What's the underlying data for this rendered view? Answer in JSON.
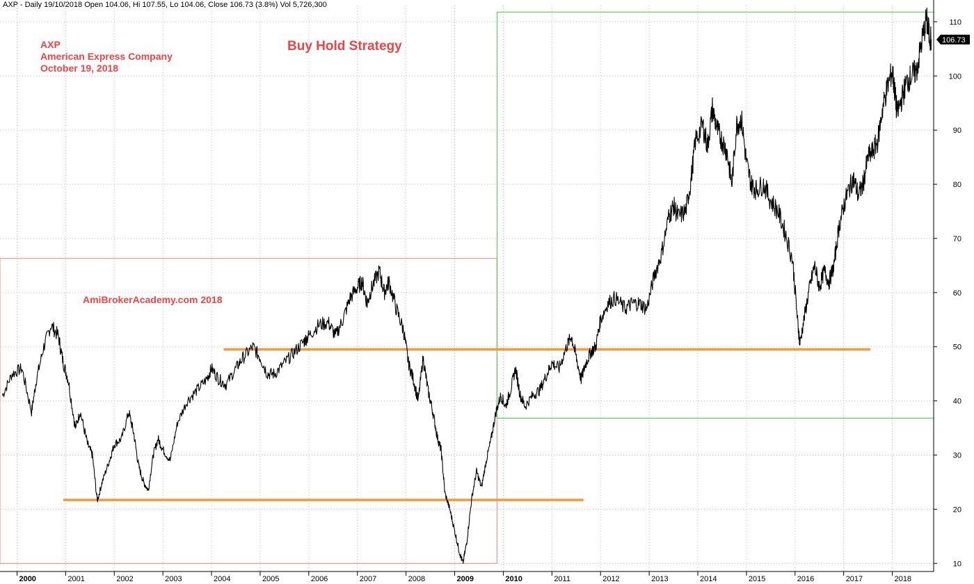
{
  "header": {
    "info": "AXP - Daily 19/10/2018 Open 104.06, Hi 107.55, Lo 104.06, Close 106.73 (3.8%) Vol 5,726,300"
  },
  "annotations": {
    "symbol": "AXP",
    "company": "American Express Company",
    "date": "October 19, 2018",
    "title": "Buy Hold Strategy",
    "watermark": "AmiBrokerAcademy.com  2018"
  },
  "colors": {
    "price": "#000000",
    "grid": "#bdbdbd",
    "red_box": "#f08080",
    "green_box": "#33dd33",
    "orange_line": "#f59a3a",
    "annotation": "#ef4444",
    "last_price_tag": "#000000"
  },
  "chart_data": {
    "type": "line",
    "series": [
      {
        "values": [
          [
            1999.7,
            41
          ],
          [
            1999.9,
            45
          ],
          [
            2000.1,
            46
          ],
          [
            2000.3,
            38
          ],
          [
            2000.4,
            44
          ],
          [
            2000.55,
            50
          ],
          [
            2000.7,
            54
          ],
          [
            2000.85,
            52
          ],
          [
            2000.95,
            47
          ],
          [
            2001.05,
            44
          ],
          [
            2001.2,
            35
          ],
          [
            2001.3,
            38
          ],
          [
            2001.45,
            32
          ],
          [
            2001.55,
            30
          ],
          [
            2001.65,
            21.5
          ],
          [
            2001.75,
            25
          ],
          [
            2001.9,
            29
          ],
          [
            2002.0,
            32
          ],
          [
            2002.15,
            33
          ],
          [
            2002.3,
            38
          ],
          [
            2002.4,
            34
          ],
          [
            2002.5,
            28
          ],
          [
            2002.6,
            25
          ],
          [
            2002.7,
            23.5
          ],
          [
            2002.8,
            30
          ],
          [
            2002.9,
            33
          ],
          [
            2003.0,
            31
          ],
          [
            2003.15,
            29
          ],
          [
            2003.3,
            36
          ],
          [
            2003.5,
            40
          ],
          [
            2003.7,
            42
          ],
          [
            2003.9,
            44
          ],
          [
            2004.0,
            46
          ],
          [
            2004.15,
            44
          ],
          [
            2004.3,
            43
          ],
          [
            2004.5,
            46
          ],
          [
            2004.65,
            48
          ],
          [
            2004.85,
            50
          ],
          [
            2005.0,
            48
          ],
          [
            2005.15,
            45
          ],
          [
            2005.3,
            45
          ],
          [
            2005.5,
            47
          ],
          [
            2005.7,
            49
          ],
          [
            2005.9,
            51
          ],
          [
            2006.0,
            52
          ],
          [
            2006.2,
            54
          ],
          [
            2006.4,
            54.5
          ],
          [
            2006.55,
            52
          ],
          [
            2006.7,
            55
          ],
          [
            2006.85,
            59
          ],
          [
            2007.0,
            61
          ],
          [
            2007.1,
            62
          ],
          [
            2007.2,
            58
          ],
          [
            2007.3,
            61
          ],
          [
            2007.45,
            64
          ],
          [
            2007.55,
            60
          ],
          [
            2007.65,
            62
          ],
          [
            2007.8,
            57
          ],
          [
            2007.95,
            53
          ],
          [
            2008.05,
            47
          ],
          [
            2008.15,
            44
          ],
          [
            2008.25,
            40
          ],
          [
            2008.35,
            48
          ],
          [
            2008.45,
            42
          ],
          [
            2008.55,
            38
          ],
          [
            2008.65,
            33
          ],
          [
            2008.72,
            31
          ],
          [
            2008.8,
            23
          ],
          [
            2008.9,
            20
          ],
          [
            2009.0,
            16
          ],
          [
            2009.1,
            12
          ],
          [
            2009.17,
            10
          ],
          [
            2009.25,
            14
          ],
          [
            2009.35,
            22
          ],
          [
            2009.45,
            27
          ],
          [
            2009.55,
            24
          ],
          [
            2009.65,
            29
          ],
          [
            2009.75,
            33
          ],
          [
            2009.85,
            38
          ],
          [
            2009.95,
            41
          ],
          [
            2010.05,
            39
          ],
          [
            2010.15,
            42
          ],
          [
            2010.25,
            46
          ],
          [
            2010.35,
            41
          ],
          [
            2010.45,
            39
          ],
          [
            2010.6,
            41
          ],
          [
            2010.75,
            42
          ],
          [
            2010.9,
            45
          ],
          [
            2011.0,
            47
          ],
          [
            2011.15,
            46
          ],
          [
            2011.3,
            50
          ],
          [
            2011.4,
            52
          ],
          [
            2011.5,
            48
          ],
          [
            2011.6,
            44
          ],
          [
            2011.7,
            47
          ],
          [
            2011.8,
            49
          ],
          [
            2011.9,
            50
          ],
          [
            2012.0,
            55
          ],
          [
            2012.15,
            58
          ],
          [
            2012.3,
            59
          ],
          [
            2012.5,
            57
          ],
          [
            2012.65,
            58
          ],
          [
            2012.8,
            58
          ],
          [
            2012.95,
            57
          ],
          [
            2013.1,
            63
          ],
          [
            2013.25,
            67
          ],
          [
            2013.4,
            74
          ],
          [
            2013.5,
            76
          ],
          [
            2013.6,
            74
          ],
          [
            2013.75,
            75
          ],
          [
            2013.85,
            80
          ],
          [
            2013.95,
            88
          ],
          [
            2014.1,
            91
          ],
          [
            2014.2,
            87
          ],
          [
            2014.3,
            94
          ],
          [
            2014.4,
            90
          ],
          [
            2014.5,
            88
          ],
          [
            2014.6,
            86
          ],
          [
            2014.7,
            80
          ],
          [
            2014.8,
            91
          ],
          [
            2014.9,
            92
          ],
          [
            2015.0,
            84
          ],
          [
            2015.1,
            80
          ],
          [
            2015.2,
            79
          ],
          [
            2015.35,
            80
          ],
          [
            2015.5,
            77
          ],
          [
            2015.65,
            75
          ],
          [
            2015.8,
            71
          ],
          [
            2015.95,
            66
          ],
          [
            2016.05,
            55
          ],
          [
            2016.1,
            50.5
          ],
          [
            2016.2,
            56
          ],
          [
            2016.3,
            61
          ],
          [
            2016.4,
            65
          ],
          [
            2016.5,
            61
          ],
          [
            2016.6,
            64
          ],
          [
            2016.7,
            62
          ],
          [
            2016.8,
            65
          ],
          [
            2016.9,
            72
          ],
          [
            2017.0,
            76
          ],
          [
            2017.1,
            79
          ],
          [
            2017.2,
            81
          ],
          [
            2017.3,
            78
          ],
          [
            2017.4,
            80
          ],
          [
            2017.5,
            85
          ],
          [
            2017.6,
            86
          ],
          [
            2017.7,
            88
          ],
          [
            2017.8,
            94
          ],
          [
            2017.9,
            98
          ],
          [
            2018.0,
            101
          ],
          [
            2018.05,
            97
          ],
          [
            2018.1,
            93
          ],
          [
            2018.2,
            96
          ],
          [
            2018.3,
            99
          ],
          [
            2018.4,
            100
          ],
          [
            2018.5,
            101
          ],
          [
            2018.6,
            106
          ],
          [
            2018.7,
            110.5
          ],
          [
            2018.75,
            108
          ],
          [
            2018.8,
            106.73
          ]
        ]
      }
    ],
    "xlim": [
      1999.65,
      2018.85
    ],
    "ylim": [
      8.5,
      113
    ],
    "year_ticks": [
      "2000",
      "2001",
      "2002",
      "2003",
      "2004",
      "2005",
      "2006",
      "2007",
      "2008",
      "2009",
      "2010",
      "2011",
      "2012",
      "2013",
      "2014",
      "2015",
      "2016",
      "2017",
      "2018"
    ],
    "bold_year_ticks": [
      "2000",
      "2009",
      "2010"
    ],
    "price_ticks": [
      10,
      20,
      30,
      40,
      50,
      60,
      70,
      80,
      90,
      100,
      110
    ],
    "last_price": 106.73,
    "last_price_label": "106.73",
    "grid": true,
    "horizontal_lines": [
      {
        "value": 49.5,
        "from": 2004.25,
        "to": 2017.55
      },
      {
        "value": 21.7,
        "from": 2000.95,
        "to": 2011.65
      }
    ],
    "boxes": [
      {
        "name": "red",
        "x_from": 1999.65,
        "x_to": 2009.87,
        "y_from": 10,
        "y_to": 66.3
      },
      {
        "name": "green",
        "x_from": 2009.87,
        "x_to": 2018.85,
        "y_from": 36.8,
        "y_to": 111.8
      }
    ]
  }
}
